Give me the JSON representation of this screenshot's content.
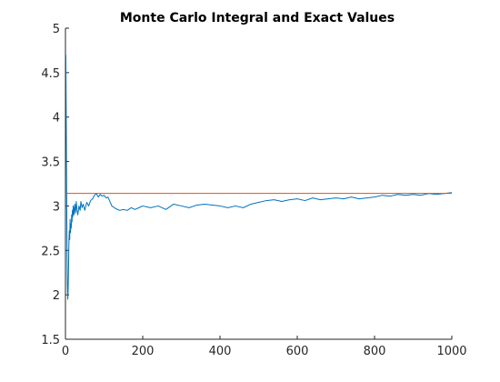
{
  "chart_data": {
    "type": "line",
    "title": "Monte Carlo Integral and Exact Values",
    "xlabel": "",
    "ylabel": "",
    "xlim": [
      0,
      1000
    ],
    "ylim": [
      1.5,
      5
    ],
    "xticks": [
      0,
      200,
      400,
      600,
      800,
      1000
    ],
    "xtick_labels": [
      "0",
      "200",
      "400",
      "600",
      "800",
      "1000"
    ],
    "yticks": [
      1.5,
      2,
      2.5,
      3,
      3.5,
      4,
      4.5,
      5
    ],
    "ytick_labels": [
      "1.5",
      "2",
      "2.5",
      "3",
      "3.5",
      "4",
      "4.5",
      "5"
    ],
    "grid": false,
    "legend": "none",
    "series": [
      {
        "color": "#0072BD",
        "x": [
          1,
          2,
          3,
          4,
          5,
          6,
          7,
          8,
          9,
          10,
          11,
          12,
          13,
          14,
          15,
          16,
          17,
          18,
          19,
          20,
          22,
          24,
          26,
          28,
          30,
          32,
          35,
          38,
          40,
          43,
          46,
          50,
          55,
          60,
          65,
          70,
          75,
          80,
          85,
          90,
          95,
          100,
          105,
          110,
          115,
          120,
          130,
          140,
          150,
          160,
          170,
          180,
          190,
          200,
          220,
          240,
          260,
          280,
          300,
          320,
          340,
          360,
          380,
          400,
          420,
          440,
          460,
          480,
          500,
          520,
          540,
          560,
          580,
          600,
          620,
          640,
          660,
          680,
          700,
          720,
          740,
          760,
          780,
          800,
          820,
          840,
          860,
          880,
          900,
          920,
          940,
          960,
          980,
          1000
        ],
        "y": [
          4.7,
          4.0,
          3.2,
          2.6,
          2.1,
          1.95,
          2.05,
          2.3,
          2.6,
          2.72,
          2.62,
          2.85,
          2.7,
          2.8,
          2.75,
          2.9,
          2.82,
          2.95,
          2.88,
          3.0,
          2.9,
          3.02,
          2.92,
          3.05,
          2.95,
          2.9,
          3.0,
          2.95,
          3.05,
          2.98,
          3.02,
          2.95,
          3.04,
          3.0,
          3.06,
          3.08,
          3.12,
          3.14,
          3.1,
          3.13,
          3.11,
          3.12,
          3.09,
          3.1,
          3.05,
          3.0,
          2.97,
          2.95,
          2.96,
          2.95,
          2.98,
          2.96,
          2.98,
          3.0,
          2.98,
          3.0,
          2.96,
          3.02,
          3.0,
          2.98,
          3.01,
          3.02,
          3.01,
          3.0,
          2.98,
          3.0,
          2.98,
          3.02,
          3.04,
          3.06,
          3.07,
          3.05,
          3.07,
          3.08,
          3.06,
          3.09,
          3.07,
          3.08,
          3.09,
          3.08,
          3.1,
          3.08,
          3.09,
          3.1,
          3.12,
          3.11,
          3.13,
          3.12,
          3.13,
          3.12,
          3.14,
          3.13,
          3.14,
          3.15
        ]
      },
      {
        "color": "#D95319",
        "x": [
          0,
          1000
        ],
        "y": [
          3.1416,
          3.1416
        ]
      }
    ]
  }
}
